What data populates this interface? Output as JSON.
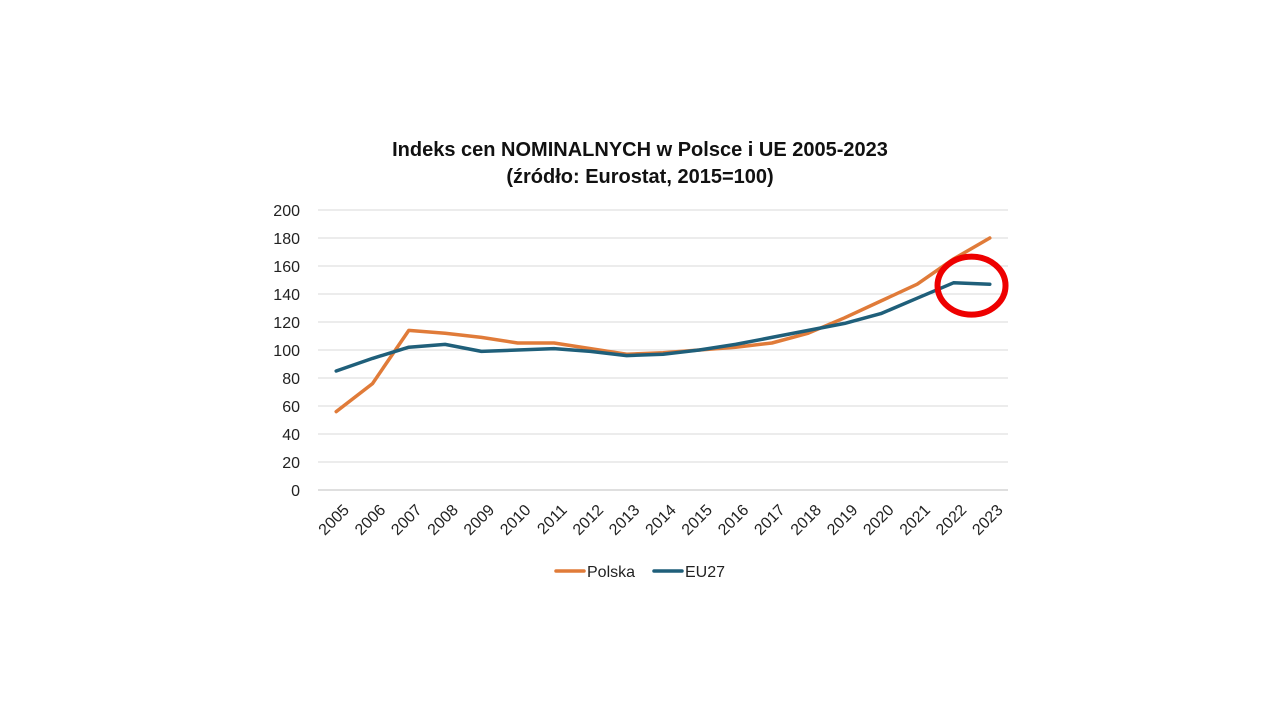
{
  "chart_data": {
    "type": "line",
    "title": "Indeks cen NOMINALNYCH  w Polsce i UE 2005-2023",
    "subtitle": "(źródło: Eurostat, 2015=100)",
    "xlabel": "",
    "ylabel": "",
    "categories": [
      "2005",
      "2006",
      "2007",
      "2008",
      "2009",
      "2010",
      "2011",
      "2012",
      "2013",
      "2014",
      "2015",
      "2016",
      "2017",
      "2018",
      "2019",
      "2020",
      "2021",
      "2022",
      "2023"
    ],
    "ylim": [
      0,
      200
    ],
    "yticks": [
      "0",
      "20",
      "40",
      "60",
      "80",
      "100",
      "120",
      "140",
      "160",
      "180",
      "200"
    ],
    "grid": true,
    "legend_position": "bottom",
    "series": [
      {
        "name": "Polska",
        "color": "#e07b39",
        "values": [
          56,
          76,
          114,
          112,
          109,
          105,
          105,
          101,
          97,
          98,
          100,
          102,
          105,
          112,
          123,
          135,
          147,
          165,
          180
        ]
      },
      {
        "name": "EU27",
        "color": "#1f5f7a",
        "values": [
          85,
          94,
          102,
          104,
          99,
          100,
          101,
          99,
          96,
          97,
          100,
          104,
          109,
          114,
          119,
          126,
          137,
          148,
          147
        ]
      }
    ],
    "annotation": {
      "type": "circle-highlight",
      "color": "#ee0000",
      "x_category": "2022",
      "y_value": 146
    }
  }
}
